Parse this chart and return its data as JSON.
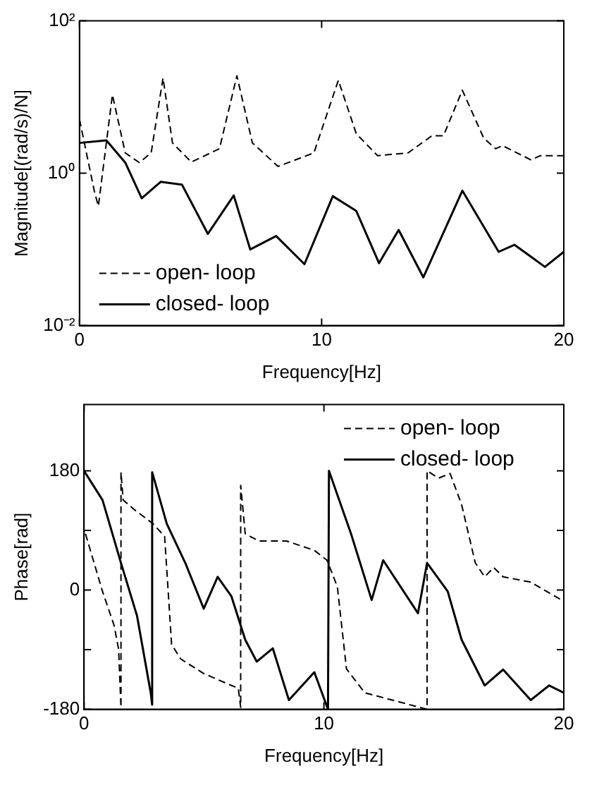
{
  "chart_data": [
    {
      "type": "line",
      "xlabel": "Frequency[Hz]",
      "ylabel": "Magnitude[(rad/s)/N]",
      "log": "y",
      "xlim": [
        0,
        20
      ],
      "xticks": [
        0,
        10,
        20
      ],
      "ylim": [
        0.01,
        100
      ],
      "yticks": [
        {
          "value": 0.01,
          "label": "10⁻²"
        },
        {
          "value": 1,
          "label": "10⁰"
        },
        {
          "value": 100,
          "label": "10²"
        }
      ],
      "grid": false,
      "legend": "bottom left",
      "marker": "none",
      "series": [
        {
          "name": "open- loop",
          "color": "#000000",
          "line_style": "dashed",
          "x": [
            0,
            0.62,
            0.78,
            1.36,
            1.89,
            2.47,
            2.96,
            3.45,
            3.84,
            4.62,
            5.78,
            6.5,
            7.14,
            8.2,
            9.68,
            10.69,
            11.43,
            12.31,
            13.57,
            14.55,
            15.03,
            15.81,
            16.69,
            17.18,
            17.47,
            18.64,
            19.03,
            20
          ],
          "values": [
            5.1,
            0.57,
            0.37,
            10.7,
            1.85,
            1.38,
            1.85,
            17.8,
            2.5,
            1.4,
            2.1,
            19,
            2.5,
            1.23,
            1.85,
            16.6,
            3.3,
            1.7,
            1.85,
            3.1,
            3.1,
            12.3,
            2.9,
            2.1,
            2.3,
            1.5,
            1.7,
            1.7
          ]
        },
        {
          "name": "closed- loop",
          "color": "#000000",
          "line_style": "solid",
          "x": [
            0,
            1.11,
            1.89,
            2.57,
            3.35,
            4.23,
            5.3,
            6.37,
            7.05,
            8.12,
            9.29,
            10.46,
            11.43,
            12.37,
            13.18,
            14.2,
            15.81,
            17.31,
            17.96,
            19.22,
            20
          ],
          "values": [
            2.5,
            2.7,
            1.38,
            0.47,
            0.77,
            0.71,
            0.16,
            0.51,
            0.1,
            0.15,
            0.064,
            0.5,
            0.32,
            0.066,
            0.18,
            0.043,
            0.59,
            0.093,
            0.115,
            0.059,
            0.093
          ]
        }
      ]
    },
    {
      "type": "line",
      "xlabel": "Frequency[Hz]",
      "ylabel": "Phase[rad]",
      "xlim": [
        0,
        20
      ],
      "xticks": [
        0,
        10,
        20
      ],
      "ylim": [
        -180,
        280
      ],
      "yticks": [
        -180,
        {
          "value": -90,
          "label": null
        },
        0,
        {
          "value": 90,
          "label": null
        },
        180
      ],
      "grid": false,
      "legend": "top right",
      "marker": "none",
      "series": [
        {
          "name": "open- loop",
          "color": "#000000",
          "line_style": "dashed",
          "x": [
            0.06,
            0.77,
            1.25,
            1.44,
            1.54,
            1.54,
            1.63,
            2.11,
            2.88,
            3.36,
            3.65,
            4.03,
            4.99,
            6.14,
            6.43,
            6.53,
            6.53,
            6.72,
            7.29,
            8.44,
            9.6,
            10.13,
            10.56,
            10.94,
            11.7,
            13.05,
            14.3,
            14.3,
            14.78,
            15.26,
            15.74,
            16.31,
            16.7,
            17.08,
            17.47,
            18.62,
            20
          ],
          "values": [
            85,
            -2,
            -53,
            -89,
            -177,
            178,
            136,
            121,
            100,
            81,
            -82,
            -104,
            -126,
            -144,
            -148,
            -177,
            158,
            85,
            74,
            74,
            60,
            45,
            5,
            -119,
            -155,
            -168,
            -180,
            180,
            169,
            176,
            129,
            41,
            20,
            34,
            20,
            12,
            -17
          ]
        },
        {
          "name": "closed- loop",
          "color": "#000000",
          "line_style": "solid",
          "x": [
            0,
            0.77,
            1.54,
            2.21,
            2.78,
            2.84,
            2.84,
            3.45,
            4.22,
            4.99,
            5.57,
            6.14,
            6.72,
            7.2,
            7.87,
            8.54,
            9.6,
            10.17,
            10.21,
            11.13,
            11.99,
            12.47,
            13.92,
            14.3,
            15.16,
            15.74,
            16.7,
            17.47,
            18.62,
            19.39,
            20
          ],
          "values": [
            180,
            136,
            41,
            -39,
            -155,
            -173,
            178,
            100,
            41,
            -28,
            20,
            -9,
            -75,
            -108,
            -88,
            -166,
            -124,
            -180,
            180,
            85,
            -15,
            45,
            -35,
            41,
            -2,
            -75,
            -144,
            -120,
            -166,
            -144,
            -155
          ]
        }
      ]
    }
  ]
}
